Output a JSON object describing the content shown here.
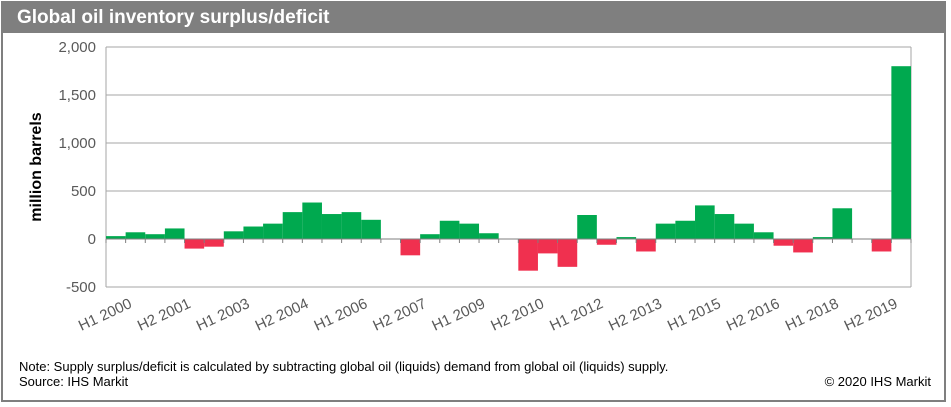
{
  "title": "Global oil inventory surplus/deficit",
  "note": "Note: Supply surplus/deficit is calculated by subtracting global oil (liquids) demand from global oil (liquids) supply.",
  "source": "Source: IHS Markit",
  "copyright": "© 2020 IHS Markit",
  "colors": {
    "surplus": "#00a94f",
    "deficit": "#f0304f",
    "header": "#7f7f7f",
    "grid": "#a6a6a6"
  },
  "chart_data": {
    "type": "bar",
    "title": "Global oil inventory surplus/deficit",
    "xlabel": "",
    "ylabel": "million barrels",
    "ylim": [
      -500,
      2000
    ],
    "yticks": [
      -500,
      0,
      500,
      1000,
      1500,
      2000
    ],
    "ytick_labels": [
      "-500",
      "0",
      "500",
      "1,000",
      "1,500",
      "2,000"
    ],
    "grid": true,
    "categories": [
      "H1 2000",
      "H2 2000",
      "H1 2001",
      "H2 2001",
      "H1 2002",
      "H2 2002",
      "H1 2003",
      "H2 2003",
      "H1 2004",
      "H2 2004",
      "H1 2005",
      "H2 2005",
      "H1 2006",
      "H2 2006",
      "H1 2007",
      "H2 2007",
      "H1 2008",
      "H2 2008",
      "H1 2009",
      "H2 2009",
      "H1 2010",
      "H2 2010",
      "H1 2011",
      "H2 2011",
      "H1 2012",
      "H2 2012",
      "H1 2013",
      "H2 2013",
      "H1 2014",
      "H2 2014",
      "H1 2015",
      "H2 2015",
      "H1 2016",
      "H2 2016",
      "H1 2017",
      "H2 2017",
      "H1 2018",
      "H2 2018",
      "H1 2019",
      "H2 2019",
      "H1 2020"
    ],
    "values": [
      30,
      70,
      50,
      110,
      -100,
      -80,
      80,
      130,
      160,
      280,
      380,
      260,
      280,
      200,
      0,
      -170,
      50,
      190,
      160,
      60,
      0,
      -330,
      -150,
      -290,
      250,
      -60,
      20,
      -130,
      160,
      190,
      350,
      260,
      160,
      70,
      -70,
      -140,
      20,
      320,
      0,
      -130,
      1800
    ],
    "visible_tick_labels": [
      "H1 2000",
      "H2 2001",
      "H1 2003",
      "H2 2004",
      "H1 2006",
      "H2 2007",
      "H1 2009",
      "H2 2010",
      "H1 2012",
      "H2 2013",
      "H1 2015",
      "H2 2016",
      "H1 2018",
      "H2 2019"
    ]
  }
}
